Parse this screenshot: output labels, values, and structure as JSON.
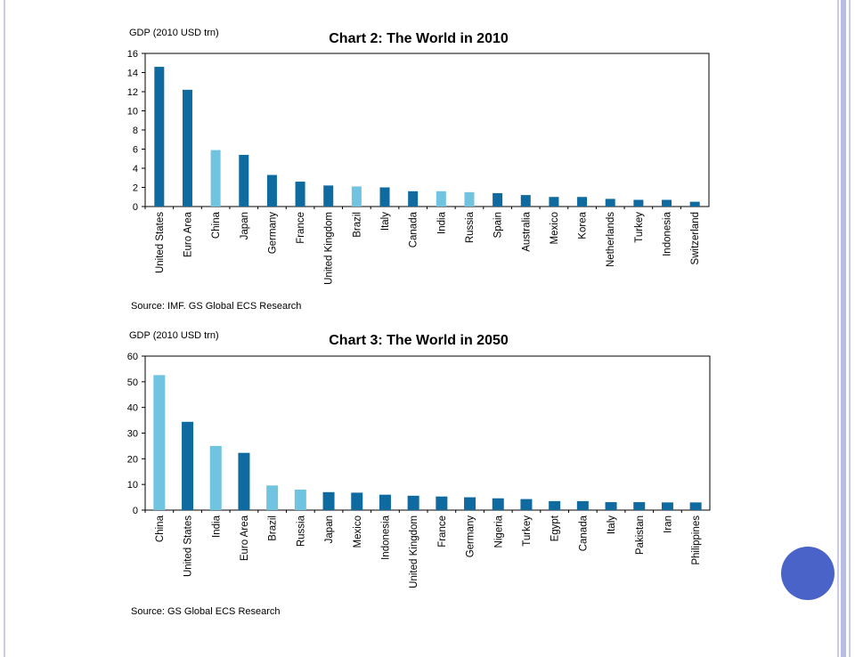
{
  "colors": {
    "dark_bar": "#0e6a9f",
    "light_bar": "#70c4e0",
    "accent_circle": "#4a63c9"
  },
  "chart_data": [
    {
      "type": "bar",
      "title": "Chart 2: The World in 2010",
      "ylabel": "GDP (2010 USD trn)",
      "source": "Source: IMF. GS Global ECS Research",
      "ylim": [
        0,
        16
      ],
      "yticks": [
        0,
        2,
        4,
        6,
        8,
        10,
        12,
        14,
        16
      ],
      "categories": [
        "United States",
        "Euro Area",
        "China",
        "Japan",
        "Germany",
        "France",
        "United Kingdom",
        "Brazil",
        "Italy",
        "Canada",
        "India",
        "Russia",
        "Spain",
        "Australia",
        "Mexico",
        "Korea",
        "Netherlands",
        "Turkey",
        "Indonesia",
        "Switzerland"
      ],
      "values": [
        14.6,
        12.2,
        5.9,
        5.4,
        3.3,
        2.6,
        2.2,
        2.1,
        2.0,
        1.6,
        1.6,
        1.5,
        1.4,
        1.2,
        1.0,
        1.0,
        0.8,
        0.7,
        0.7,
        0.5
      ],
      "highlight": [
        false,
        false,
        true,
        false,
        false,
        false,
        false,
        true,
        false,
        false,
        true,
        true,
        false,
        false,
        false,
        false,
        false,
        false,
        false,
        false
      ]
    },
    {
      "type": "bar",
      "title": "Chart 3: The World in 2050",
      "ylabel": "GDP (2010 USD trn)",
      "source": "Source: GS Global ECS Research",
      "ylim": [
        0,
        60
      ],
      "yticks": [
        0,
        10,
        20,
        30,
        40,
        50,
        60
      ],
      "categories": [
        "China",
        "United States",
        "India",
        "Euro Area",
        "Brazil",
        "Russia",
        "Japan",
        "Mexico",
        "Indonesia",
        "United Kingdom",
        "France",
        "Germany",
        "Nigeria",
        "Turkey",
        "Egypt",
        "Canada",
        "Italy",
        "Pakistan",
        "Iran",
        "Philippines"
      ],
      "values": [
        52.6,
        34.4,
        25.0,
        22.3,
        9.6,
        8.0,
        7.0,
        6.8,
        6.0,
        5.6,
        5.3,
        5.0,
        4.6,
        4.3,
        3.5,
        3.5,
        3.1,
        3.1,
        3.0,
        3.0
      ],
      "highlight": [
        true,
        false,
        true,
        false,
        true,
        true,
        false,
        false,
        false,
        false,
        false,
        false,
        false,
        false,
        false,
        false,
        false,
        false,
        false,
        false
      ]
    }
  ]
}
